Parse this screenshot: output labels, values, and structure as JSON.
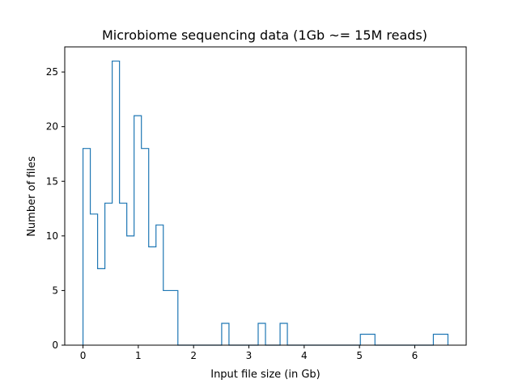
{
  "chart_data": {
    "type": "histogram",
    "title": "Microbiome sequencing data (1Gb ~= 15M reads)",
    "xlabel": "Input file size (in Gb)",
    "ylabel": "Number of files",
    "xlim": [
      -0.33,
      6.93
    ],
    "ylim": [
      0,
      27.3
    ],
    "xticks": [
      0,
      1,
      2,
      3,
      4,
      5,
      6
    ],
    "yticks": [
      0,
      5,
      10,
      15,
      20,
      25
    ],
    "bin_edges": [
      0,
      0.132,
      0.264,
      0.396,
      0.528,
      0.66,
      0.792,
      0.924,
      1.056,
      1.188,
      1.32,
      1.452,
      1.584,
      1.716,
      1.848,
      1.98,
      2.112,
      2.244,
      2.376,
      2.508,
      2.64,
      2.772,
      2.904,
      3.036,
      3.168,
      3.3,
      3.432,
      3.564,
      3.696,
      3.828,
      3.96,
      4.092,
      4.224,
      4.356,
      4.488,
      4.62,
      4.752,
      4.884,
      5.016,
      5.148,
      5.28,
      5.412,
      5.544,
      5.676,
      5.808,
      5.94,
      6.072,
      6.204,
      6.336,
      6.468,
      6.6
    ],
    "counts": [
      18,
      12,
      7,
      13,
      26,
      13,
      10,
      21,
      18,
      9,
      11,
      5,
      5,
      0,
      0,
      0,
      0,
      0,
      0,
      2,
      0,
      0,
      0,
      0,
      2,
      0,
      0,
      2,
      0,
      0,
      0,
      0,
      0,
      0,
      0,
      0,
      0,
      0,
      1,
      1,
      0,
      0,
      0,
      0,
      0,
      0,
      0,
      0,
      1,
      1
    ],
    "histtype": "step",
    "color": "#1f77b4",
    "grid": false
  }
}
